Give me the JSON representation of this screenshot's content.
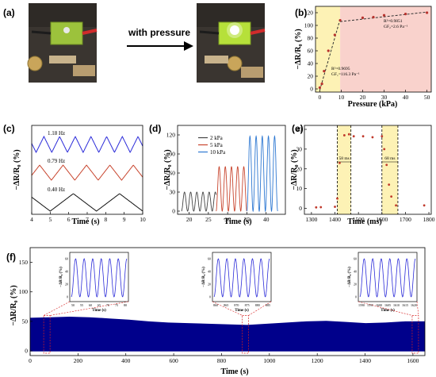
{
  "photo": {
    "label": "(a)",
    "arrow_text": "with pressure"
  },
  "chart_data": [
    {
      "id": "b",
      "label": "(b)",
      "type": "scatter",
      "xlabel": "Pressure (kPa)",
      "ylabel": "−ΔR/R₀ (%)",
      "xlim": [
        -2,
        52
      ],
      "ylim": [
        -5,
        130
      ],
      "xticks": [
        0,
        10,
        20,
        30,
        40,
        50
      ],
      "yticks": [
        0,
        20,
        40,
        60,
        80,
        100,
        120
      ],
      "x": [
        0,
        1,
        2,
        4,
        7,
        9.5,
        20,
        25,
        30,
        40,
        50
      ],
      "y": [
        2,
        8,
        28,
        60,
        85,
        108,
        112,
        113,
        116,
        118,
        120
      ],
      "regions": [
        {
          "x0": -2,
          "x1": 9.5,
          "color": "#fdf2b5"
        },
        {
          "x0": 9.5,
          "x1": 52,
          "color": "#f9d2cc"
        }
      ],
      "annotations": [
        {
          "line1": "R²=0.9695",
          "line2": "GF₁=116.3 Pa⁻¹"
        },
        {
          "line1": "R²=0.9851",
          "line2": "GF₂=2.6 Pa⁻¹"
        }
      ]
    },
    {
      "id": "c",
      "label": "(c)",
      "type": "line",
      "xlabel": "Time (s)",
      "ylabel": "−ΔR/R₀ (%)",
      "xlim": [
        4,
        10
      ],
      "xticks": [
        4,
        5,
        6,
        7,
        8,
        9,
        10
      ],
      "series": [
        {
          "name": "1.18 Hz",
          "freq": 1.18,
          "color": "#2b2bd9"
        },
        {
          "name": "0.79 Hz",
          "freq": 0.79,
          "color": "#c8452e"
        },
        {
          "name": "0.40 Hz",
          "freq": 0.4,
          "color": "#111111"
        }
      ]
    },
    {
      "id": "d",
      "label": "(d)",
      "type": "line",
      "xlabel": "Time (s)",
      "ylabel": "−ΔR/R₀ (%)",
      "xlim": [
        17,
        45
      ],
      "ylim": [
        -5,
        135
      ],
      "xticks": [
        20,
        25,
        30,
        35,
        40
      ],
      "yticks": [
        0,
        30,
        60,
        90,
        120
      ],
      "series": [
        {
          "name": "2 kPa",
          "color": "#444444",
          "t0": 18,
          "t1": 27,
          "amp": 30
        },
        {
          "name": "5 kPa",
          "color": "#c8452e",
          "t0": 27,
          "t1": 35,
          "amp": 70
        },
        {
          "name": "10 kPa",
          "color": "#2e78d2",
          "t0": 35,
          "t1": 43,
          "amp": 118
        }
      ]
    },
    {
      "id": "e",
      "label": "(e)",
      "type": "scatter",
      "xlabel": "Time (ms)",
      "ylabel": "−ΔR/R₀ (%)",
      "xlim": [
        1270,
        1810
      ],
      "ylim": [
        -3,
        42
      ],
      "xticks": [
        1300,
        1400,
        1500,
        1600,
        1700,
        1800
      ],
      "yticks": [
        0,
        10,
        20,
        30,
        40
      ],
      "x": [
        1320,
        1340,
        1400,
        1410,
        1420,
        1440,
        1460,
        1480,
        1520,
        1560,
        1600,
        1610,
        1620,
        1630,
        1640,
        1660,
        1780
      ],
      "y": [
        0.5,
        0.6,
        0.8,
        5,
        23,
        37,
        37.5,
        36.5,
        36.5,
        36,
        36.5,
        30,
        22,
        12,
        6,
        1.5,
        1.5
      ],
      "regions": [
        {
          "x0": 1410,
          "x1": 1468,
          "color": "#fdf2b5"
        },
        {
          "x0": 1600,
          "x1": 1668,
          "color": "#fdf2b5"
        }
      ],
      "annotations": [
        "58 ms",
        "68 ms"
      ]
    },
    {
      "id": "f",
      "label": "(f)",
      "type": "line",
      "xlabel": "Time (s)",
      "ylabel": "−ΔR/R₀ (%)",
      "xlim": [
        0,
        1650
      ],
      "ylim": [
        -8,
        175
      ],
      "xticks": [
        0,
        200,
        400,
        600,
        800,
        1000,
        1200,
        1400,
        1600
      ],
      "yticks": [
        0,
        50,
        100,
        150
      ],
      "band_top": [
        56,
        57,
        58,
        57,
        55,
        53,
        50,
        48,
        47,
        46,
        45,
        44,
        46,
        48,
        50,
        51,
        49,
        47,
        48,
        50,
        50
      ],
      "color": "#00008b",
      "insets": [
        {
          "xlabel": "Time (s)",
          "ylabel": "−ΔR/R₀ (%)",
          "xticks": [
            "50",
            "55",
            "60",
            "65",
            "70",
            "75",
            "80"
          ],
          "yticks": [
            "0",
            "20",
            "40",
            "60"
          ],
          "range": [
            50,
            80
          ]
        },
        {
          "xlabel": "Time (s)",
          "ylabel": "−ΔR/R₀ (%)",
          "xticks": [
            "860",
            "865",
            "870",
            "875",
            "880",
            "885"
          ],
          "yticks": [
            "0",
            "20",
            "40",
            "60"
          ],
          "range": [
            860,
            890
          ]
        },
        {
          "xlabel": "Time (s)",
          "ylabel": "−ΔR/R₀ (%)",
          "xticks": [
            "1590",
            "1595",
            "1600",
            "1605",
            "1610",
            "1615",
            "1620"
          ],
          "yticks": [
            "0",
            "20",
            "40",
            "60"
          ],
          "range": [
            1590,
            1620
          ]
        }
      ]
    }
  ]
}
